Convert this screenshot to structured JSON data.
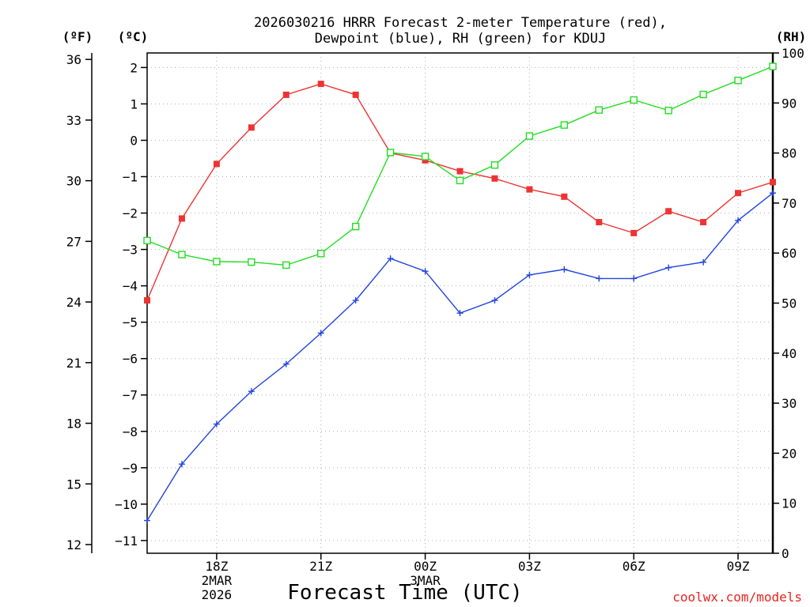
{
  "chart_data": {
    "type": "line",
    "title_lines": [
      "2026030216 HRRR Forecast 2-meter Temperature (red),",
      "Dewpoint (blue), RH (green) for KDUJ"
    ],
    "xlabel": "Forecast Time (UTC)",
    "credit": "coolwx.com/models",
    "unit_labels": {
      "f": "(ºF)",
      "c": "(ºC)",
      "rh": "(RH)"
    },
    "x_hours": [
      16,
      17,
      18,
      19,
      20,
      21,
      22,
      23,
      24,
      25,
      26,
      27,
      28,
      29,
      30,
      31,
      32,
      33,
      34
    ],
    "x_range": [
      16,
      34
    ],
    "x_ticks": [
      {
        "hour": 18,
        "lines": [
          "18Z",
          "2MAR",
          "2026"
        ]
      },
      {
        "hour": 21,
        "lines": [
          "21Z"
        ]
      },
      {
        "hour": 24,
        "lines": [
          "00Z",
          "3MAR"
        ]
      },
      {
        "hour": 27,
        "lines": [
          "03Z"
        ]
      },
      {
        "hour": 30,
        "lines": [
          "06Z"
        ]
      },
      {
        "hour": 33,
        "lines": [
          "09Z"
        ]
      }
    ],
    "y_celsius_range": [
      -11.35,
      2.4
    ],
    "y_celsius_ticks": [
      2,
      1,
      0,
      -1,
      -2,
      -3,
      -4,
      -5,
      -6,
      -7,
      -8,
      -9,
      -10,
      -11
    ],
    "y_fahrenheit_ticks": [
      36,
      33,
      30,
      27,
      24,
      21,
      18,
      15,
      12
    ],
    "y_rh_range": [
      0,
      100
    ],
    "y_rh_ticks": [
      100,
      90,
      80,
      70,
      60,
      50,
      40,
      30,
      20,
      10,
      0
    ],
    "grid": true,
    "series": [
      {
        "name": "Temperature",
        "units": "C",
        "axis": "celsius",
        "color": "#ee3333",
        "marker": "filled-square",
        "values": [
          -4.4,
          -2.15,
          -0.65,
          0.35,
          1.25,
          1.55,
          1.25,
          -0.35,
          -0.55,
          -0.85,
          -1.05,
          -1.35,
          -1.55,
          -2.25,
          -2.55,
          -1.95,
          -2.25,
          -1.45,
          -1.15
        ]
      },
      {
        "name": "Dewpoint",
        "units": "C",
        "axis": "celsius",
        "color": "#2244dd",
        "marker": "plus",
        "values": [
          -10.45,
          -8.9,
          -7.8,
          -6.9,
          -6.15,
          -5.3,
          -4.4,
          -3.25,
          -3.6,
          -4.75,
          -4.4,
          -3.7,
          -3.55,
          -3.8,
          -3.8,
          -3.5,
          -3.35,
          -2.2,
          -1.45
        ]
      },
      {
        "name": "RH",
        "units": "%",
        "axis": "rh",
        "color": "#22dd22",
        "marker": "open-square",
        "values": [
          62.5,
          59.7,
          58.3,
          58.2,
          57.6,
          59.9,
          65.3,
          80.1,
          79.3,
          74.5,
          77.6,
          83.4,
          85.6,
          88.6,
          90.6,
          88.5,
          91.7,
          94.5,
          97.3
        ]
      }
    ]
  }
}
